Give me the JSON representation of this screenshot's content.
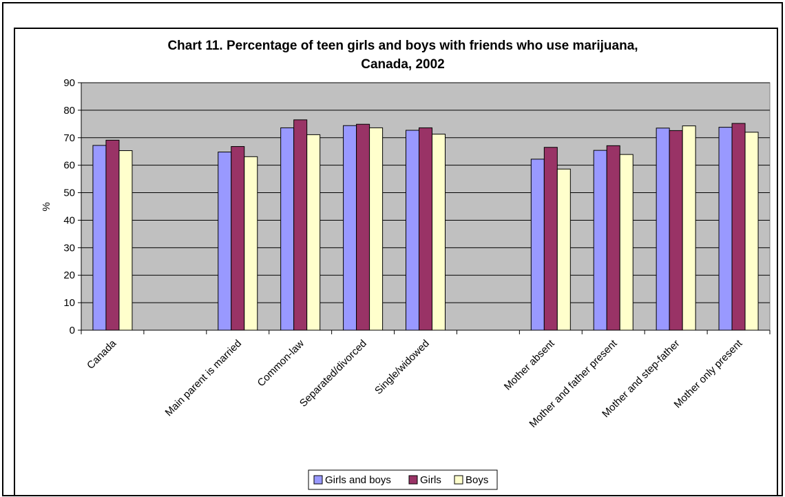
{
  "chart_data": {
    "type": "bar",
    "title": "Chart 11. Percentage of teen girls and boys with friends who use marijuana,",
    "subtitle": "Canada, 2002",
    "xlabel": "",
    "ylabel": "%",
    "ylim": [
      0,
      90
    ],
    "yticks": [
      "0",
      "10",
      "20",
      "30",
      "40",
      "50",
      "60",
      "70",
      "80",
      "90"
    ],
    "grid": true,
    "legend_position": "bottom",
    "categories": [
      "Canada",
      "",
      "Main parent is married",
      "Common-law",
      "Separated/divorced",
      "Single/widowed",
      "",
      "Mother absent",
      "Mother and father present",
      "Mother and step-father",
      "Mother only present"
    ],
    "series": [
      {
        "name": "Girls and boys",
        "color": "#9999ff",
        "values": [
          67.2,
          null,
          64.8,
          73.6,
          74.4,
          72.7,
          null,
          62.2,
          65.4,
          73.5,
          73.8
        ]
      },
      {
        "name": "Girls",
        "color": "#993366",
        "values": [
          69.1,
          null,
          66.8,
          76.5,
          74.9,
          73.6,
          null,
          66.5,
          67.1,
          72.6,
          75.2
        ]
      },
      {
        "name": "Boys",
        "color": "#ffffcc",
        "values": [
          65.3,
          null,
          63.1,
          71.1,
          73.6,
          71.3,
          null,
          58.6,
          63.9,
          74.3,
          72.0
        ]
      }
    ],
    "plot_background": "#c0c0c0"
  }
}
